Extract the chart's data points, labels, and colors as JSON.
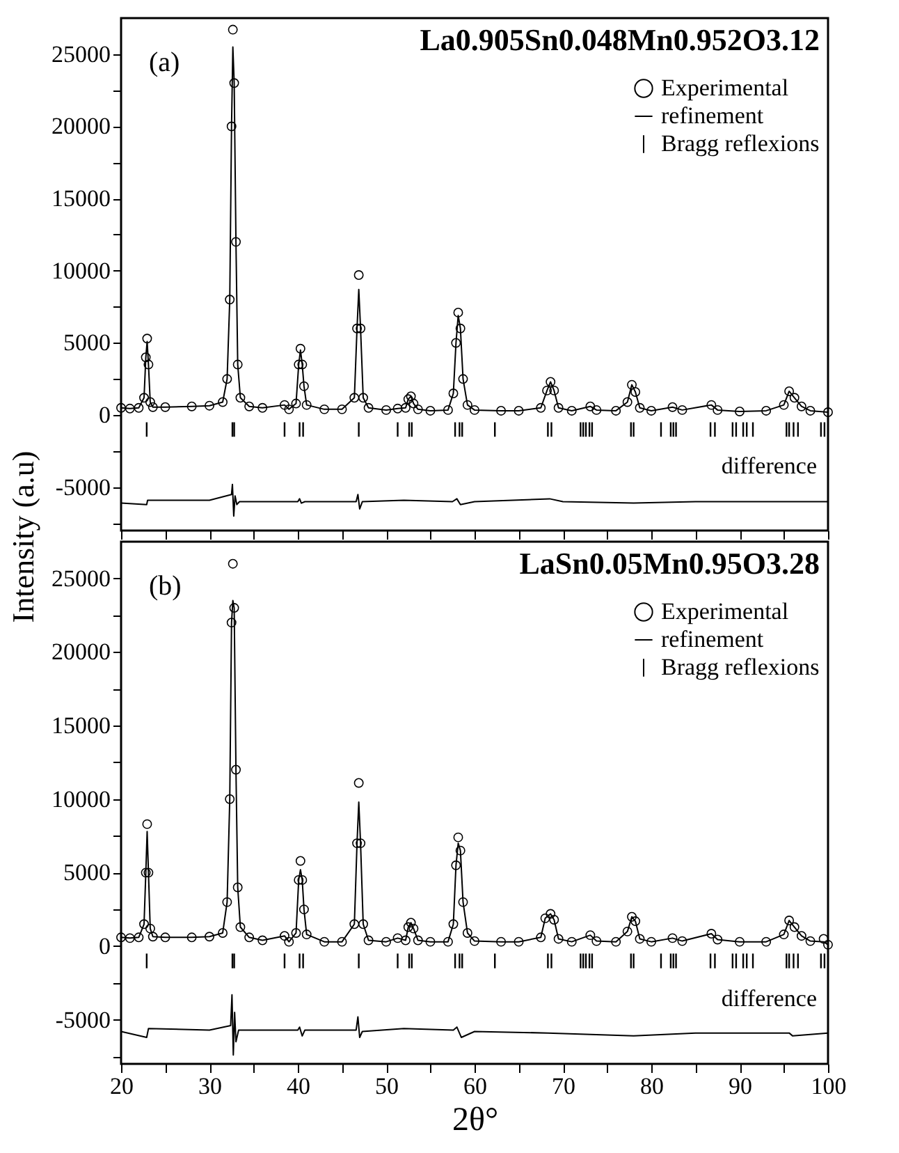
{
  "chart_data": [
    {
      "type": "scatter",
      "legend_title": "La0.905Sn0.048Mn0.952O3.12",
      "ylabel": "Intensity (a.u)",
      "legend": "top right",
      "tick_labels": "y",
      "grid": false,
      "xlim": [
        20,
        100
      ],
      "ylim": [
        -8000,
        27500
      ],
      "xticks": [
        20,
        {
          "value": 25,
          "label": null
        },
        30,
        {
          "value": 35,
          "label": null
        },
        40,
        {
          "value": 45,
          "label": null
        },
        50,
        {
          "value": 55,
          "label": null
        },
        60,
        {
          "value": 65,
          "label": null
        },
        70,
        {
          "value": 75,
          "label": null
        },
        80,
        {
          "value": 85,
          "label": null
        },
        90,
        {
          "value": 95,
          "label": null
        },
        100
      ],
      "yticks": [
        {
          "value": -7500,
          "label": null
        },
        -5000,
        {
          "value": -2500,
          "label": null
        },
        0,
        {
          "value": 2500,
          "label": null
        },
        5000,
        {
          "value": 7500,
          "label": null
        },
        10000,
        {
          "value": 12500,
          "label": null
        },
        15000,
        {
          "value": 17500,
          "label": null
        },
        20000,
        {
          "value": 22500,
          "label": null
        },
        25000
      ],
      "annotations": [
        "(a)",
        "difference"
      ],
      "series": [
        {
          "name": "Experimental",
          "marker": "circle",
          "color": "#000000",
          "x": [
            20,
            21,
            22,
            22.6,
            22.8,
            22.95,
            23.1,
            23.3,
            23.6,
            25,
            28,
            30,
            31.5,
            32.0,
            32.3,
            32.5,
            32.65,
            32.8,
            33.0,
            33.2,
            33.5,
            34.5,
            36,
            38.5,
            39,
            39.8,
            40.1,
            40.3,
            40.5,
            40.7,
            41,
            43,
            45,
            46.4,
            46.7,
            46.9,
            47.1,
            47.4,
            48,
            50,
            51.3,
            52.2,
            52.5,
            52.8,
            53.1,
            53.6,
            55,
            57,
            57.6,
            57.9,
            58.15,
            58.4,
            58.7,
            59.2,
            60,
            63,
            65,
            67.5,
            68.2,
            68.6,
            69,
            69.5,
            71,
            73.1,
            73.8,
            76,
            77.3,
            77.8,
            78.2,
            78.7,
            80,
            82.4,
            83.5,
            86.8,
            87.5,
            90,
            93,
            95,
            95.6,
            96.2,
            97,
            98,
            100
          ],
          "values": [
            500,
            450,
            500,
            1200,
            4000,
            5300,
            3500,
            900,
            550,
            550,
            600,
            650,
            900,
            2500,
            8000,
            20000,
            26700,
            23000,
            12000,
            3500,
            1200,
            600,
            500,
            700,
            400,
            800,
            3500,
            4600,
            3500,
            2000,
            700,
            400,
            400,
            1200,
            6000,
            9700,
            6000,
            1200,
            500,
            350,
            450,
            500,
            1100,
            1300,
            800,
            400,
            300,
            350,
            1500,
            5000,
            7100,
            6000,
            2500,
            700,
            350,
            300,
            300,
            500,
            1700,
            2300,
            1700,
            500,
            300,
            600,
            350,
            300,
            900,
            2100,
            1600,
            500,
            300,
            550,
            350,
            700,
            350,
            250,
            300,
            700,
            1650,
            1200,
            600,
            300,
            200
          ]
        },
        {
          "name": "refinement",
          "type": "line",
          "line_style": "solid",
          "color": "#000000",
          "x": [
            20,
            21,
            22,
            22.6,
            22.8,
            22.95,
            23.1,
            23.3,
            23.6,
            25,
            28,
            30,
            31.5,
            32.0,
            32.3,
            32.5,
            32.65,
            32.8,
            33.0,
            33.2,
            33.5,
            34.5,
            36,
            38.5,
            39,
            39.8,
            40.1,
            40.3,
            40.5,
            40.7,
            41,
            43,
            45,
            46.4,
            46.7,
            46.9,
            47.1,
            47.4,
            48,
            50,
            51.3,
            52.2,
            52.5,
            52.8,
            53.1,
            53.6,
            55,
            57,
            57.6,
            57.9,
            58.15,
            58.4,
            58.7,
            59.2,
            60,
            63,
            65,
            67.5,
            68.2,
            68.6,
            69,
            69.5,
            71,
            73.1,
            73.8,
            76,
            77.3,
            77.8,
            78.2,
            78.7,
            80,
            82.4,
            83.5,
            86.8,
            87.5,
            90,
            93,
            95,
            95.6,
            96.2,
            97,
            98,
            100
          ],
          "values": [
            500,
            450,
            500,
            1200,
            4000,
            5100,
            3500,
            900,
            550,
            550,
            600,
            650,
            900,
            2500,
            8000,
            20000,
            25500,
            23000,
            12000,
            3500,
            1200,
            600,
            500,
            700,
            400,
            800,
            3500,
            4500,
            3500,
            2000,
            700,
            400,
            400,
            1200,
            6000,
            8700,
            6000,
            1200,
            500,
            350,
            450,
            500,
            1100,
            1300,
            800,
            400,
            300,
            350,
            1500,
            5000,
            6900,
            6000,
            2500,
            700,
            350,
            300,
            300,
            500,
            1700,
            2300,
            1700,
            500,
            300,
            600,
            350,
            300,
            900,
            2100,
            1600,
            500,
            300,
            550,
            350,
            700,
            350,
            250,
            300,
            700,
            1650,
            1200,
            600,
            300,
            200
          ]
        },
        {
          "name": "Bragg reflexions",
          "type": "bar",
          "color": "#000000",
          "x": [
            22.9,
            32.6,
            32.8,
            38.5,
            40.2,
            40.6,
            46.9,
            51.3,
            52.6,
            52.9,
            57.8,
            58.3,
            58.6,
            62.3,
            68.3,
            68.7,
            72.0,
            72.3,
            72.6,
            73.0,
            73.3,
            77.7,
            78.0,
            81.1,
            82.2,
            82.5,
            82.8,
            86.7,
            87.2,
            89.2,
            89.6,
            90.4,
            90.8,
            91.5,
            95.3,
            95.6,
            96.1,
            96.6,
            99.2,
            99.6
          ],
          "base": [
            -1500,
            -1500,
            -1500,
            -1500,
            -1500,
            -1500,
            -1500,
            -1500,
            -1500,
            -1500,
            -1500,
            -1500,
            -1500,
            -1500,
            -1500,
            -1500,
            -1500,
            -1500,
            -1500,
            -1500,
            -1500,
            -1500,
            -1500,
            -1500,
            -1500,
            -1500,
            -1500,
            -1500,
            -1500,
            -1500,
            -1500,
            -1500,
            -1500,
            -1500,
            -1500,
            -1500,
            -1500,
            -1500,
            -1500,
            -1500
          ],
          "values": [
            1000,
            1000,
            1000,
            1000,
            1000,
            1000,
            1000,
            1000,
            1000,
            1000,
            1000,
            1000,
            1000,
            1000,
            1000,
            1000,
            1000,
            1000,
            1000,
            1000,
            1000,
            1000,
            1000,
            1000,
            1000,
            1000,
            1000,
            1000,
            1000,
            1000,
            1000,
            1000,
            1000,
            1000,
            1000,
            1000,
            1000,
            1000,
            1000,
            1000
          ]
        },
        {
          "type": "line",
          "line_style": "solid",
          "color": "#000000",
          "x": [
            20,
            22.9,
            23,
            30,
            32.5,
            32.6,
            32.75,
            32.9,
            33.1,
            33.4,
            40,
            40.2,
            40.4,
            40.8,
            46.6,
            46.8,
            47,
            47.3,
            52,
            57.5,
            58,
            58.4,
            60,
            68.5,
            70,
            78,
            85,
            95,
            100
          ],
          "values": [
            -6100,
            -6200,
            -5900,
            -5900,
            -5500,
            -4800,
            -7000,
            -5600,
            -6200,
            -6000,
            -6000,
            -5800,
            -6100,
            -6000,
            -6000,
            -5500,
            -6500,
            -6000,
            -5900,
            -6000,
            -5800,
            -6200,
            -6000,
            -5800,
            -6000,
            -6100,
            -6000,
            -6000,
            -6000
          ]
        }
      ]
    },
    {
      "type": "scatter",
      "legend_title": "LaSn0.05Mn0.95O3.28",
      "xlabel": "2θ°",
      "legend": "top right",
      "grid": false,
      "xlim": [
        20,
        100
      ],
      "ylim": [
        -8000,
        27500
      ],
      "xticks": [
        20,
        {
          "value": 25,
          "label": null
        },
        30,
        {
          "value": 35,
          "label": null
        },
        40,
        {
          "value": 45,
          "label": null
        },
        50,
        {
          "value": 55,
          "label": null
        },
        60,
        {
          "value": 65,
          "label": null
        },
        70,
        {
          "value": 75,
          "label": null
        },
        80,
        {
          "value": 85,
          "label": null
        },
        90,
        {
          "value": 95,
          "label": null
        },
        100
      ],
      "yticks": [
        {
          "value": -7500,
          "label": null
        },
        -5000,
        {
          "value": -2500,
          "label": null
        },
        0,
        {
          "value": 2500,
          "label": null
        },
        5000,
        {
          "value": 7500,
          "label": null
        },
        10000,
        {
          "value": 12500,
          "label": null
        },
        15000,
        {
          "value": 17500,
          "label": null
        },
        20000,
        {
          "value": 22500,
          "label": null
        },
        25000
      ],
      "annotations": [
        "(b)",
        "difference"
      ],
      "series": [
        {
          "name": "Experimental",
          "marker": "circle",
          "color": "#000000",
          "x": [
            20,
            21,
            22,
            22.6,
            22.8,
            22.95,
            23.1,
            23.3,
            23.6,
            25,
            28,
            30,
            31.5,
            32.0,
            32.3,
            32.5,
            32.65,
            32.8,
            33.0,
            33.2,
            33.5,
            34.5,
            36,
            38.5,
            39,
            39.8,
            40.1,
            40.3,
            40.5,
            40.7,
            41,
            43,
            45,
            46.4,
            46.7,
            46.9,
            47.1,
            47.4,
            48,
            50,
            51.3,
            52.2,
            52.5,
            52.8,
            53.1,
            53.6,
            55,
            57,
            57.6,
            57.9,
            58.15,
            58.4,
            58.7,
            59.2,
            60,
            63,
            65,
            67.5,
            68.0,
            68.6,
            69,
            69.5,
            71,
            73.1,
            73.8,
            76,
            77.3,
            77.8,
            78.2,
            78.7,
            80,
            82.4,
            83.5,
            86.8,
            87.5,
            90,
            93,
            95,
            95.6,
            96.2,
            97,
            98,
            99.5,
            100
          ],
          "values": [
            600,
            550,
            600,
            1500,
            5000,
            8300,
            5000,
            1200,
            650,
            600,
            600,
            650,
            900,
            3000,
            10000,
            22000,
            26000,
            23000,
            12000,
            4000,
            1300,
            600,
            400,
            700,
            300,
            900,
            4500,
            5800,
            4500,
            2500,
            800,
            300,
            300,
            1500,
            7000,
            11100,
            7000,
            1500,
            400,
            300,
            550,
            400,
            1300,
            1600,
            1200,
            400,
            300,
            300,
            1500,
            5500,
            7400,
            6500,
            3000,
            900,
            350,
            300,
            300,
            600,
            1900,
            2200,
            1800,
            500,
            300,
            750,
            350,
            300,
            1000,
            2000,
            1700,
            500,
            300,
            550,
            350,
            850,
            450,
            300,
            300,
            800,
            1750,
            1300,
            700,
            350,
            500,
            100
          ]
        },
        {
          "name": "refinement",
          "type": "line",
          "line_style": "solid",
          "color": "#000000",
          "x": [
            20,
            21,
            22,
            22.6,
            22.8,
            22.95,
            23.1,
            23.3,
            23.6,
            25,
            28,
            30,
            31.5,
            32.0,
            32.3,
            32.5,
            32.65,
            32.8,
            33.0,
            33.2,
            33.5,
            34.5,
            36,
            38.5,
            39,
            39.8,
            40.1,
            40.3,
            40.5,
            40.7,
            41,
            43,
            45,
            46.4,
            46.7,
            46.9,
            47.1,
            47.4,
            48,
            50,
            51.3,
            52.2,
            52.5,
            52.8,
            53.1,
            53.6,
            55,
            57,
            57.6,
            57.9,
            58.15,
            58.4,
            58.7,
            59.2,
            60,
            63,
            65,
            67.5,
            68.0,
            68.6,
            69,
            69.5,
            71,
            73.1,
            73.8,
            76,
            77.3,
            77.8,
            78.2,
            78.7,
            80,
            82.4,
            83.5,
            86.8,
            87.5,
            90,
            93,
            95,
            95.6,
            96.2,
            97,
            98,
            99.5,
            100
          ],
          "values": [
            600,
            550,
            600,
            1500,
            5000,
            7800,
            5000,
            1200,
            650,
            600,
            600,
            650,
            900,
            3000,
            10000,
            22000,
            23500,
            23000,
            12000,
            4000,
            1300,
            600,
            400,
            700,
            300,
            900,
            4500,
            5200,
            4500,
            2500,
            800,
            300,
            300,
            1500,
            7000,
            9800,
            7000,
            1500,
            400,
            300,
            550,
            400,
            1300,
            1600,
            1200,
            400,
            300,
            300,
            1500,
            5500,
            7000,
            6500,
            3000,
            900,
            350,
            300,
            300,
            600,
            1900,
            2200,
            1800,
            500,
            300,
            750,
            350,
            300,
            1000,
            2000,
            1700,
            500,
            300,
            550,
            350,
            850,
            450,
            300,
            300,
            800,
            1750,
            1300,
            700,
            350,
            300,
            100
          ]
        },
        {
          "name": "Bragg reflexions",
          "type": "bar",
          "color": "#000000",
          "x": [
            22.9,
            32.6,
            32.8,
            38.5,
            40.2,
            40.6,
            46.9,
            51.3,
            52.6,
            52.9,
            57.8,
            58.3,
            58.6,
            62.3,
            68.3,
            68.7,
            72.0,
            72.3,
            72.6,
            73.0,
            73.3,
            77.7,
            78.0,
            81.1,
            82.2,
            82.5,
            82.8,
            86.7,
            87.2,
            89.2,
            89.6,
            90.4,
            90.8,
            91.5,
            95.3,
            95.6,
            96.1,
            96.6,
            99.2,
            99.6
          ],
          "base": [
            -1500,
            -1500,
            -1500,
            -1500,
            -1500,
            -1500,
            -1500,
            -1500,
            -1500,
            -1500,
            -1500,
            -1500,
            -1500,
            -1500,
            -1500,
            -1500,
            -1500,
            -1500,
            -1500,
            -1500,
            -1500,
            -1500,
            -1500,
            -1500,
            -1500,
            -1500,
            -1500,
            -1500,
            -1500,
            -1500,
            -1500,
            -1500,
            -1500,
            -1500,
            -1500,
            -1500,
            -1500,
            -1500,
            -1500,
            -1500
          ],
          "values": [
            1000,
            1000,
            1000,
            1000,
            1000,
            1000,
            1000,
            1000,
            1000,
            1000,
            1000,
            1000,
            1000,
            1000,
            1000,
            1000,
            1000,
            1000,
            1000,
            1000,
            1000,
            1000,
            1000,
            1000,
            1000,
            1000,
            1000,
            1000,
            1000,
            1000,
            1000,
            1000,
            1000,
            1000,
            1000,
            1000,
            1000,
            1000,
            1000,
            1000
          ]
        },
        {
          "type": "line",
          "line_style": "solid",
          "color": "#000000",
          "x": [
            20,
            22.9,
            23.1,
            30,
            32.4,
            32.55,
            32.7,
            32.85,
            33,
            33.3,
            40,
            40.2,
            40.5,
            40.8,
            46.6,
            46.8,
            47,
            47.3,
            52,
            57.6,
            58,
            58.5,
            60,
            68.3,
            78,
            85,
            95.6,
            96,
            100
          ],
          "values": [
            -5800,
            -6200,
            -5600,
            -5700,
            -5400,
            -3300,
            -7400,
            -4500,
            -6500,
            -5700,
            -5700,
            -5500,
            -6100,
            -5700,
            -5700,
            -4800,
            -6200,
            -5800,
            -5600,
            -5700,
            -5500,
            -6200,
            -5800,
            -5900,
            -6100,
            -5900,
            -5900,
            -6100,
            -5900
          ]
        }
      ]
    }
  ]
}
